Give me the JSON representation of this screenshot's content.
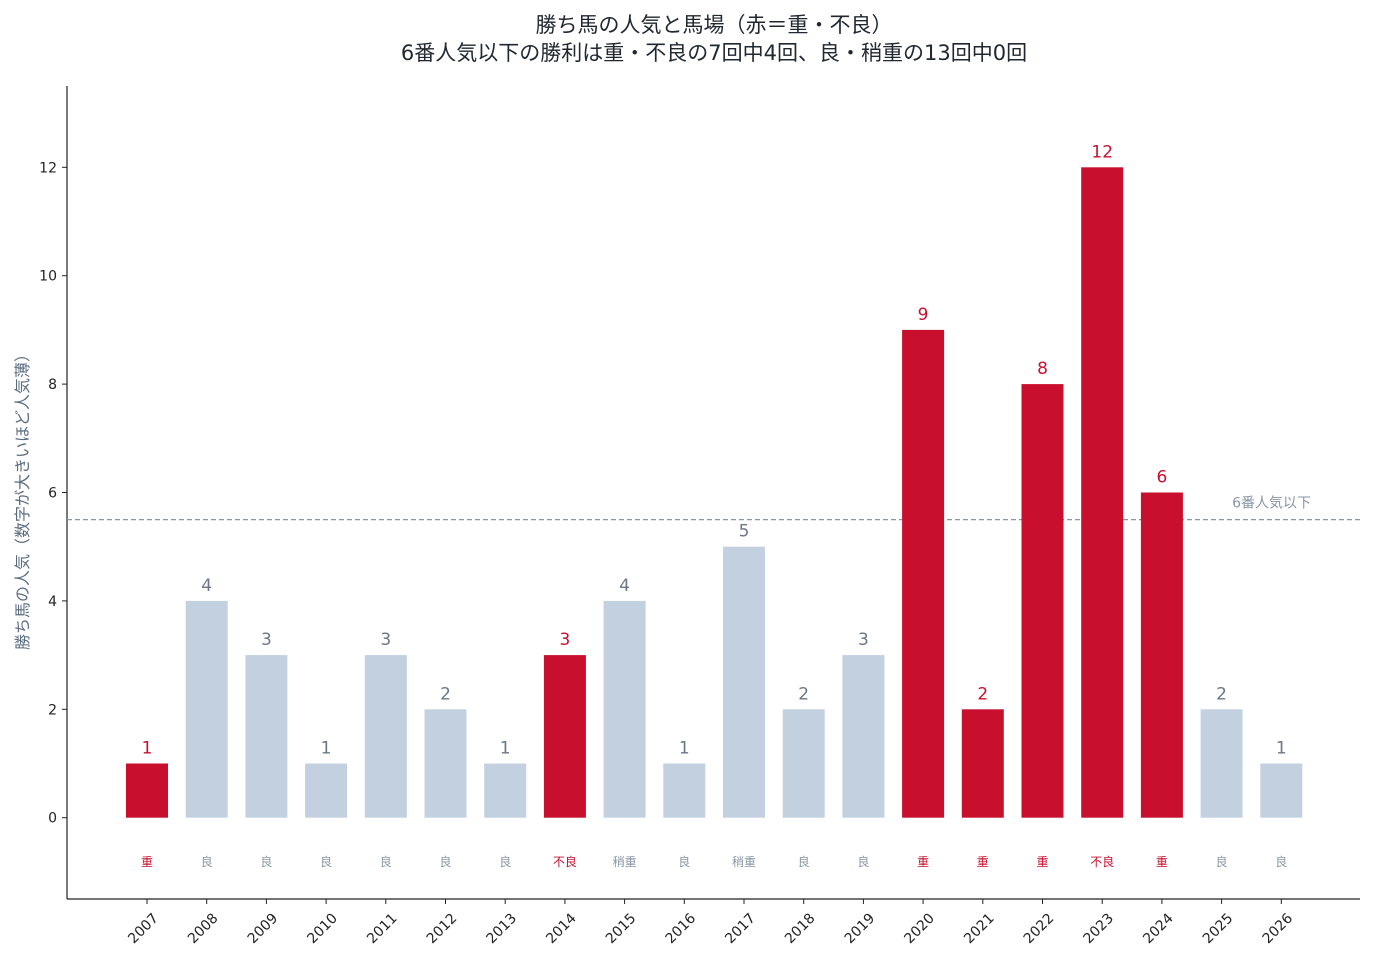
{
  "colors": {
    "heavy": "#c8102e",
    "good": "#c3d0e0",
    "good_text": "#6b7686",
    "cond_good_text": "#8a96a6",
    "axis": "#222222",
    "ref_line": "#8a96a6"
  },
  "chart_data": {
    "type": "bar",
    "title": "勝ち馬の人気と馬場（赤＝重・不良）",
    "subtitle": "6番人気以下の勝利は重・不良の7回中4回、良・稍重の13回中0回",
    "xlabel": "",
    "ylabel": "勝ち馬の人気（数字が大きいほど人気薄）",
    "ylim": [
      -1.5,
      13.5
    ],
    "yticks": [
      0,
      2,
      4,
      6,
      8,
      10,
      12
    ],
    "categories": [
      "2007",
      "2008",
      "2009",
      "2010",
      "2011",
      "2012",
      "2013",
      "2014",
      "2015",
      "2016",
      "2017",
      "2018",
      "2019",
      "2020",
      "2021",
      "2022",
      "2023",
      "2024",
      "2025",
      "2026"
    ],
    "values": [
      1,
      4,
      3,
      1,
      3,
      2,
      1,
      3,
      4,
      1,
      5,
      2,
      3,
      9,
      2,
      8,
      12,
      6,
      2,
      1
    ],
    "conditions": [
      "重",
      "良",
      "良",
      "良",
      "良",
      "良",
      "良",
      "不良",
      "稍重",
      "良",
      "稍重",
      "良",
      "良",
      "重",
      "重",
      "重",
      "不良",
      "重",
      "良",
      "良"
    ],
    "heavy": [
      true,
      false,
      false,
      false,
      false,
      false,
      false,
      true,
      false,
      false,
      false,
      false,
      false,
      true,
      true,
      true,
      true,
      true,
      false,
      false
    ],
    "reference_line": {
      "y": 5.5,
      "label": "6番人気以下",
      "style": "dashed"
    },
    "grid": false
  }
}
